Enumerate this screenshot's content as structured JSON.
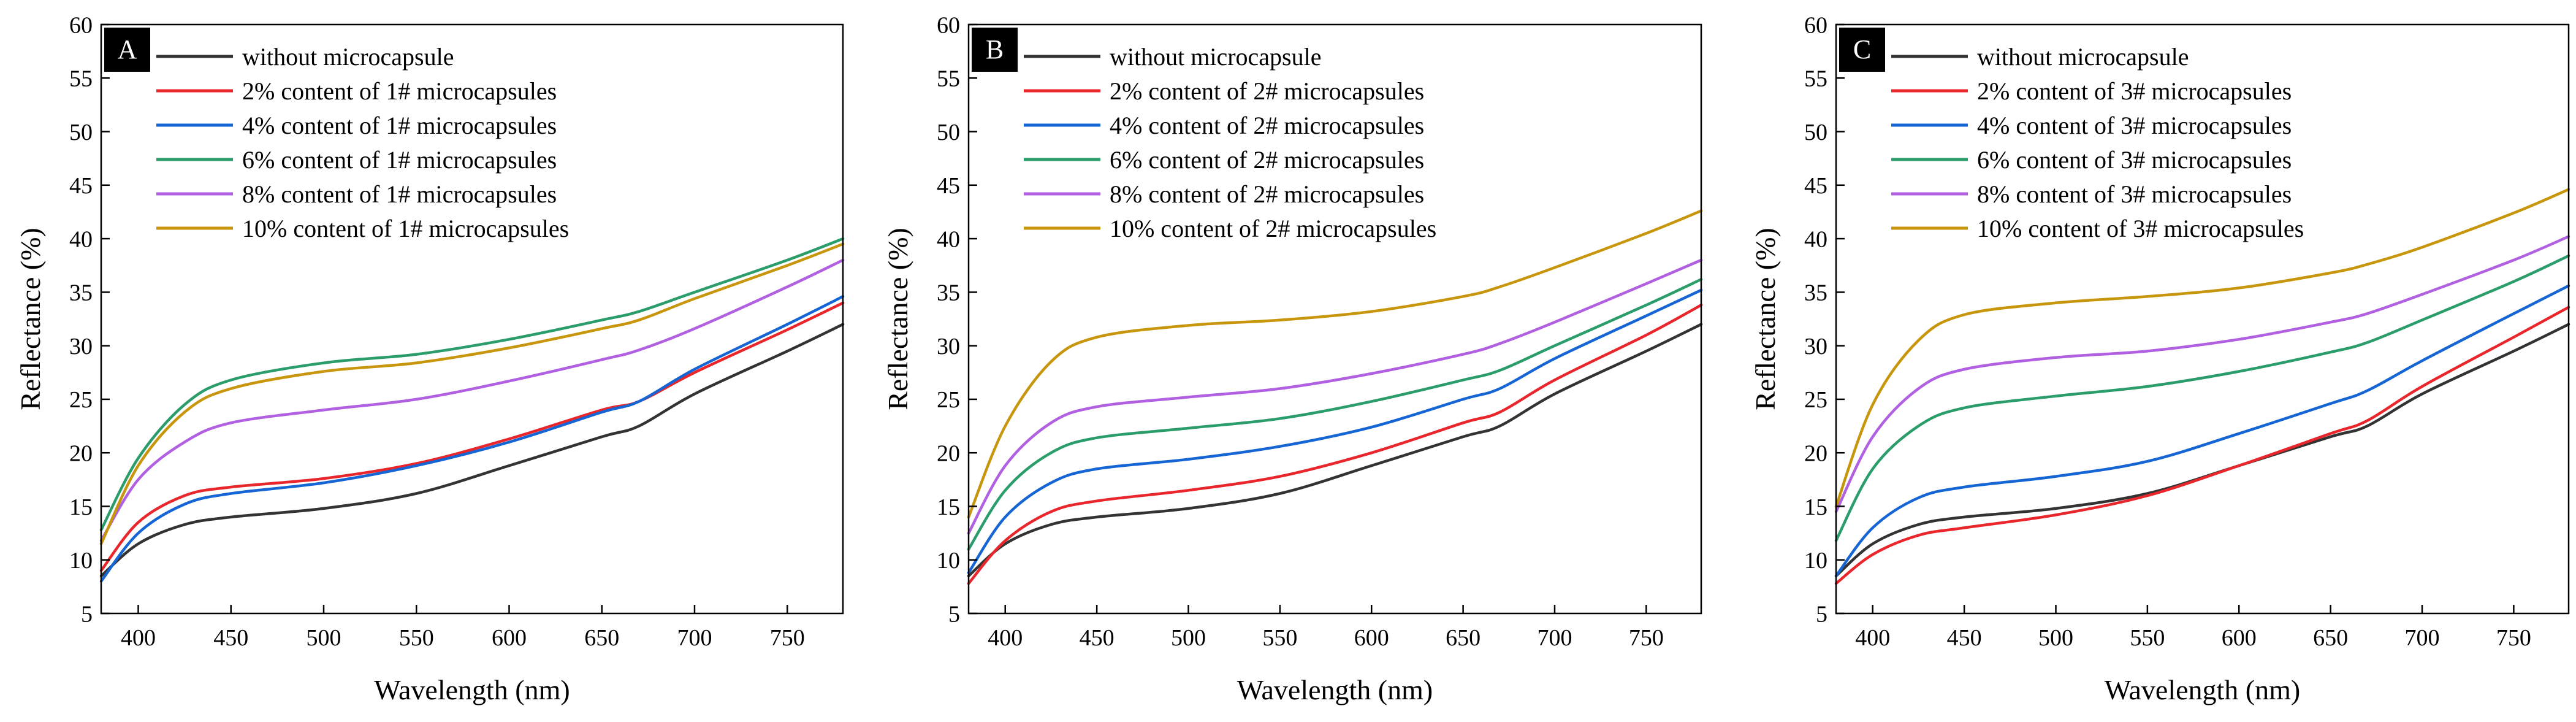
{
  "chart_data": [
    {
      "type": "line",
      "panel_label": "A",
      "xlabel": "Wavelength (nm)",
      "ylabel": "Reflectance (%)",
      "xlim": [
        380,
        780
      ],
      "ylim": [
        5,
        60
      ],
      "xticks": [
        400,
        450,
        500,
        550,
        600,
        650,
        700,
        750
      ],
      "yticks": [
        5,
        10,
        15,
        20,
        25,
        30,
        35,
        40,
        45,
        50,
        55,
        60
      ],
      "x": [
        380,
        400,
        425,
        450,
        500,
        550,
        600,
        650,
        670,
        700,
        750,
        780
      ],
      "series": [
        {
          "name": "without microcapsule",
          "color": "#333333",
          "values": [
            8.5,
            11.5,
            13.3,
            14.0,
            14.8,
            16.2,
            18.8,
            21.5,
            22.5,
            25.5,
            29.5,
            32.0
          ]
        },
        {
          "name": "2% content of 1# microcapsules",
          "color": "#e8262b",
          "values": [
            9.0,
            13.5,
            16.0,
            16.8,
            17.6,
            19.0,
            21.3,
            24.0,
            24.8,
            27.5,
            31.5,
            34.0
          ]
        },
        {
          "name": "4% content of 1# microcapsules",
          "color": "#1565d4",
          "values": [
            8.0,
            12.5,
            15.2,
            16.2,
            17.2,
            18.8,
            21.0,
            23.8,
            24.8,
            27.8,
            32.0,
            34.6
          ]
        },
        {
          "name": "6% content of 1# microcapsules",
          "color": "#2a9d6a",
          "values": [
            12.8,
            19.5,
            24.5,
            26.8,
            28.4,
            29.2,
            30.6,
            32.4,
            33.2,
            35.0,
            38.0,
            40.0
          ]
        },
        {
          "name": "8% content of 1# microcapsules",
          "color": "#b060e0",
          "values": [
            11.8,
            17.5,
            21.0,
            22.8,
            24.0,
            25.0,
            26.7,
            28.7,
            29.6,
            31.6,
            35.5,
            38.0
          ]
        },
        {
          "name": "10% content of 1# microcapsules",
          "color": "#c8960c",
          "values": [
            11.5,
            18.8,
            23.8,
            26.0,
            27.6,
            28.4,
            29.8,
            31.6,
            32.4,
            34.4,
            37.5,
            39.5
          ]
        }
      ]
    },
    {
      "type": "line",
      "panel_label": "B",
      "xlabel": "Wavelength (nm)",
      "ylabel": "Reflectance (%)",
      "xlim": [
        380,
        780
      ],
      "ylim": [
        5,
        60
      ],
      "xticks": [
        400,
        450,
        500,
        550,
        600,
        650,
        700,
        750
      ],
      "yticks": [
        5,
        10,
        15,
        20,
        25,
        30,
        35,
        40,
        45,
        50,
        55,
        60
      ],
      "x": [
        380,
        400,
        425,
        450,
        500,
        550,
        600,
        650,
        670,
        700,
        750,
        780
      ],
      "series": [
        {
          "name": "without microcapsule",
          "color": "#333333",
          "values": [
            8.5,
            11.5,
            13.3,
            14.0,
            14.8,
            16.2,
            18.8,
            21.5,
            22.5,
            25.5,
            29.5,
            32.0
          ]
        },
        {
          "name": "2% content of 2# microcapsules",
          "color": "#e8262b",
          "values": [
            7.8,
            11.8,
            14.5,
            15.5,
            16.5,
            17.8,
            20.0,
            22.8,
            23.8,
            26.8,
            31.0,
            33.8
          ]
        },
        {
          "name": "4% content of 2# microcapsules",
          "color": "#1565d4",
          "values": [
            8.8,
            14.0,
            17.2,
            18.5,
            19.4,
            20.6,
            22.4,
            25.0,
            26.0,
            28.8,
            32.8,
            35.2
          ]
        },
        {
          "name": "6% content of 2# microcapsules",
          "color": "#2a9d6a",
          "values": [
            11.0,
            16.5,
            20.0,
            21.4,
            22.3,
            23.2,
            24.8,
            26.8,
            27.7,
            30.0,
            33.8,
            36.2
          ]
        },
        {
          "name": "8% content of 2# microcapsules",
          "color": "#b060e0",
          "values": [
            12.5,
            18.8,
            22.8,
            24.3,
            25.2,
            26.0,
            27.4,
            29.2,
            30.2,
            32.2,
            35.8,
            38.0
          ]
        },
        {
          "name": "10% content of 2# microcapsules",
          "color": "#c8960c",
          "values": [
            14.0,
            22.5,
            28.5,
            30.8,
            31.9,
            32.4,
            33.2,
            34.6,
            35.5,
            37.3,
            40.5,
            42.6
          ]
        }
      ]
    },
    {
      "type": "line",
      "panel_label": "C",
      "xlabel": "Wavelength (nm)",
      "ylabel": "Reflectance (%)",
      "xlim": [
        380,
        780
      ],
      "ylim": [
        5,
        60
      ],
      "xticks": [
        400,
        450,
        500,
        550,
        600,
        650,
        700,
        750
      ],
      "yticks": [
        5,
        10,
        15,
        20,
        25,
        30,
        35,
        40,
        45,
        50,
        55,
        60
      ],
      "x": [
        380,
        400,
        425,
        450,
        500,
        550,
        600,
        650,
        670,
        700,
        750,
        780
      ],
      "series": [
        {
          "name": "without microcapsule",
          "color": "#333333",
          "values": [
            8.5,
            11.5,
            13.3,
            14.0,
            14.8,
            16.2,
            18.8,
            21.5,
            22.5,
            25.5,
            29.5,
            32.0
          ]
        },
        {
          "name": "2% content of 3# microcapsules",
          "color": "#e8262b",
          "values": [
            7.8,
            10.5,
            12.3,
            13.0,
            14.2,
            16.0,
            18.8,
            21.8,
            23.0,
            26.2,
            30.8,
            33.6
          ]
        },
        {
          "name": "4% content of 3# microcapsules",
          "color": "#1565d4",
          "values": [
            8.5,
            13.0,
            15.8,
            16.8,
            17.8,
            19.2,
            21.8,
            24.6,
            25.8,
            28.6,
            33.0,
            35.6
          ]
        },
        {
          "name": "6% content of 3# microcapsules",
          "color": "#2a9d6a",
          "values": [
            11.8,
            18.5,
            22.5,
            24.2,
            25.3,
            26.2,
            27.6,
            29.4,
            30.3,
            32.4,
            36.0,
            38.4
          ]
        },
        {
          "name": "8% content of 3# microcapsules",
          "color": "#b060e0",
          "values": [
            14.5,
            21.5,
            26.0,
            27.8,
            28.9,
            29.5,
            30.6,
            32.2,
            33.0,
            34.8,
            38.0,
            40.2
          ]
        },
        {
          "name": "10% content of 3# microcapsules",
          "color": "#c8960c",
          "values": [
            15.0,
            24.5,
            30.5,
            32.9,
            34.0,
            34.6,
            35.4,
            36.8,
            37.6,
            39.2,
            42.4,
            44.6
          ]
        }
      ]
    }
  ]
}
